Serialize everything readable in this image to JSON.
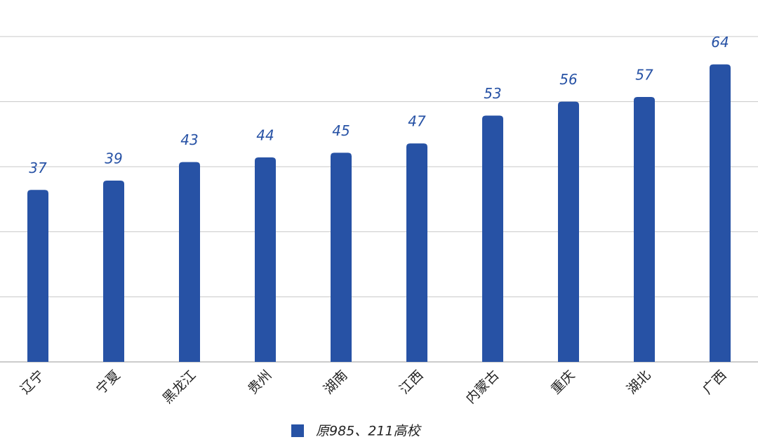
{
  "chart_data": {
    "type": "bar",
    "categories": [
      "辽宁",
      "宁夏",
      "黑龙江",
      "贵州",
      "湖南",
      "江西",
      "内蒙古",
      "重庆",
      "湖北",
      "广西"
    ],
    "series": [
      {
        "name": "原985、211高校",
        "color": "#2752a5",
        "values": [
          37,
          39,
          43,
          44,
          45,
          47,
          53,
          56,
          57,
          64
        ]
      }
    ],
    "ylim": [
      0,
      70
    ],
    "yticks": [
      0,
      14,
      28,
      42,
      56,
      70
    ],
    "grid": true,
    "legend": "bottom"
  }
}
